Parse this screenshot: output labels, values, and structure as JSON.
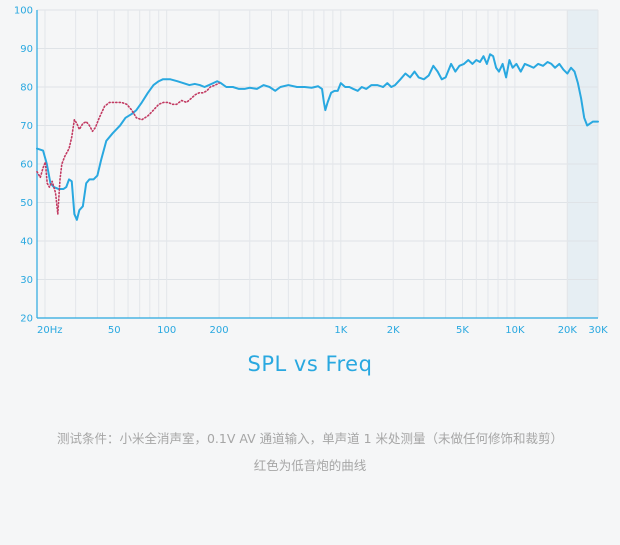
{
  "chart_data": {
    "type": "line",
    "title": "SPL vs Freq",
    "xlabel": "",
    "ylabel": "",
    "x_scale": "log",
    "xlim": [
      18,
      30000
    ],
    "ylim": [
      20,
      100
    ],
    "grid": true,
    "legend": "none",
    "x_ticks": [
      {
        "value": 20,
        "label": "20Hz"
      },
      {
        "value": 50,
        "label": "50"
      },
      {
        "value": 100,
        "label": "100"
      },
      {
        "value": 200,
        "label": "200"
      },
      {
        "value": 1000,
        "label": "1K"
      },
      {
        "value": 2000,
        "label": "2K"
      },
      {
        "value": 5000,
        "label": "5K"
      },
      {
        "value": 10000,
        "label": "10K"
      },
      {
        "value": 20000,
        "label": "20K"
      },
      {
        "value": 30000,
        "label": "30K"
      }
    ],
    "y_ticks": [
      20,
      30,
      40,
      50,
      60,
      70,
      80,
      90,
      100
    ],
    "shaded_region": {
      "x": [
        20000,
        30000
      ]
    },
    "series": [
      {
        "name": "",
        "color": "#29a8e0",
        "points": [
          [
            18,
            64
          ],
          [
            19.5,
            63.5
          ],
          [
            20.5,
            60
          ],
          [
            21.5,
            55
          ],
          [
            22.5,
            54
          ],
          [
            24,
            53.5
          ],
          [
            25.5,
            53.5
          ],
          [
            26.5,
            54
          ],
          [
            27.5,
            56
          ],
          [
            28.5,
            55.5
          ],
          [
            29.5,
            47
          ],
          [
            30.5,
            45.5
          ],
          [
            31.5,
            48
          ],
          [
            33,
            49
          ],
          [
            34.5,
            55
          ],
          [
            36,
            56
          ],
          [
            38,
            56
          ],
          [
            40,
            57
          ],
          [
            42,
            61
          ],
          [
            45,
            66
          ],
          [
            49,
            68
          ],
          [
            54,
            70
          ],
          [
            58,
            72
          ],
          [
            63,
            73
          ],
          [
            67,
            74
          ],
          [
            72,
            76
          ],
          [
            78,
            78.5
          ],
          [
            84,
            80.5
          ],
          [
            90,
            81.5
          ],
          [
            95,
            82
          ],
          [
            105,
            82
          ],
          [
            115,
            81.5
          ],
          [
            125,
            81
          ],
          [
            135,
            80.5
          ],
          [
            145,
            80.8
          ],
          [
            155,
            80.5
          ],
          [
            165,
            80
          ],
          [
            175,
            80.5
          ],
          [
            185,
            81
          ],
          [
            195,
            81.5
          ],
          [
            205,
            81
          ],
          [
            220,
            80
          ],
          [
            240,
            80
          ],
          [
            260,
            79.5
          ],
          [
            280,
            79.5
          ],
          [
            300,
            79.8
          ],
          [
            330,
            79.5
          ],
          [
            360,
            80.5
          ],
          [
            390,
            80
          ],
          [
            420,
            79
          ],
          [
            450,
            80
          ],
          [
            500,
            80.5
          ],
          [
            560,
            80
          ],
          [
            620,
            80
          ],
          [
            680,
            79.8
          ],
          [
            740,
            80.2
          ],
          [
            780,
            79.5
          ],
          [
            800,
            76
          ],
          [
            815,
            74
          ],
          [
            840,
            76
          ],
          [
            880,
            78.5
          ],
          [
            920,
            79
          ],
          [
            960,
            79
          ],
          [
            1000,
            81
          ],
          [
            1060,
            80
          ],
          [
            1120,
            80
          ],
          [
            1180,
            79.5
          ],
          [
            1250,
            79
          ],
          [
            1320,
            80
          ],
          [
            1400,
            79.5
          ],
          [
            1500,
            80.5
          ],
          [
            1620,
            80.5
          ],
          [
            1750,
            80
          ],
          [
            1850,
            81
          ],
          [
            1950,
            80
          ],
          [
            2050,
            80.5
          ],
          [
            2200,
            82
          ],
          [
            2350,
            83.5
          ],
          [
            2500,
            82.5
          ],
          [
            2650,
            84
          ],
          [
            2800,
            82.5
          ],
          [
            3000,
            82
          ],
          [
            3200,
            83
          ],
          [
            3400,
            85.5
          ],
          [
            3600,
            84
          ],
          [
            3800,
            82
          ],
          [
            4000,
            82.5
          ],
          [
            4300,
            86
          ],
          [
            4550,
            84
          ],
          [
            4800,
            85.5
          ],
          [
            5100,
            86
          ],
          [
            5400,
            87
          ],
          [
            5700,
            86
          ],
          [
            6000,
            87
          ],
          [
            6300,
            86.5
          ],
          [
            6600,
            88
          ],
          [
            6900,
            86
          ],
          [
            7200,
            88.5
          ],
          [
            7500,
            88
          ],
          [
            7800,
            85
          ],
          [
            8100,
            84
          ],
          [
            8500,
            86
          ],
          [
            8900,
            82.5
          ],
          [
            9300,
            87
          ],
          [
            9700,
            85
          ],
          [
            10200,
            86
          ],
          [
            10800,
            84
          ],
          [
            11400,
            86
          ],
          [
            12100,
            85.5
          ],
          [
            12800,
            85
          ],
          [
            13600,
            86
          ],
          [
            14500,
            85.5
          ],
          [
            15400,
            86.5
          ],
          [
            16200,
            86
          ],
          [
            17000,
            85
          ],
          [
            18000,
            86
          ],
          [
            19000,
            84.5
          ],
          [
            20000,
            83.5
          ],
          [
            21000,
            85
          ],
          [
            22000,
            84
          ],
          [
            23000,
            81
          ],
          [
            24000,
            77
          ],
          [
            25000,
            72
          ],
          [
            26000,
            70
          ],
          [
            27000,
            70.5
          ],
          [
            28000,
            71
          ],
          [
            30000,
            71
          ]
        ]
      },
      {
        "name": "",
        "color": "#c23a62",
        "style": "dotted",
        "points": [
          [
            18,
            58
          ],
          [
            18.8,
            56.5
          ],
          [
            19.5,
            59
          ],
          [
            20.1,
            60.5
          ],
          [
            20.6,
            55
          ],
          [
            21.2,
            54
          ],
          [
            22,
            55.5
          ],
          [
            23,
            52.5
          ],
          [
            23.7,
            47
          ],
          [
            24.4,
            56
          ],
          [
            25,
            60
          ],
          [
            26,
            62
          ],
          [
            27.5,
            64
          ],
          [
            28.5,
            67
          ],
          [
            29.5,
            71.5
          ],
          [
            30.5,
            70.5
          ],
          [
            31.5,
            69
          ],
          [
            33,
            70.5
          ],
          [
            34.5,
            71
          ],
          [
            36,
            70
          ],
          [
            37.5,
            68.5
          ],
          [
            39,
            69.5
          ],
          [
            41,
            72
          ],
          [
            44,
            75
          ],
          [
            47,
            76
          ],
          [
            51,
            76
          ],
          [
            55,
            76
          ],
          [
            59,
            75.5
          ],
          [
            63,
            74
          ],
          [
            67,
            72
          ],
          [
            72,
            71.5
          ],
          [
            78,
            72.5
          ],
          [
            84,
            74
          ],
          [
            90,
            75.5
          ],
          [
            96,
            76
          ],
          [
            102,
            76
          ],
          [
            108,
            75.5
          ],
          [
            114,
            75.5
          ],
          [
            122,
            76.5
          ],
          [
            130,
            76
          ],
          [
            138,
            77
          ],
          [
            146,
            78
          ],
          [
            154,
            78.5
          ],
          [
            162,
            78.5
          ],
          [
            170,
            79
          ],
          [
            178,
            80
          ],
          [
            190,
            80.5
          ],
          [
            200,
            81
          ]
        ]
      }
    ]
  },
  "captions": {
    "line1": "测试条件：小米全消声室，0.1V AV 通道输入，单声道 1 米处测量（未做任何修饰和裁剪）",
    "line2": "红色为低音炮的曲线"
  }
}
